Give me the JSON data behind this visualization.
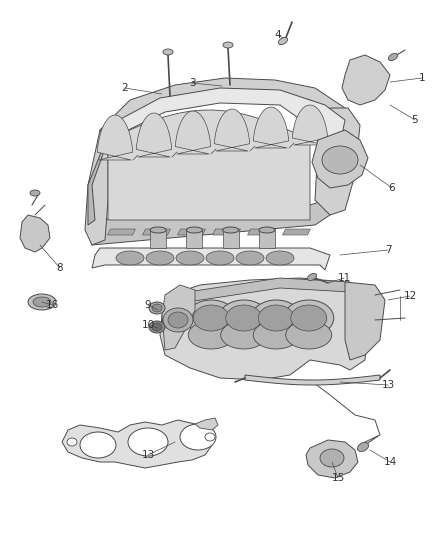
{
  "bg_color": "#ffffff",
  "line_color": "#4a4a4a",
  "fill_light": "#e8e8e8",
  "fill_mid": "#d0d0d0",
  "fill_dark": "#b8b8b8",
  "label_color": "#333333",
  "label_fontsize": 7.5,
  "figsize": [
    4.38,
    5.33
  ],
  "dpi": 100
}
